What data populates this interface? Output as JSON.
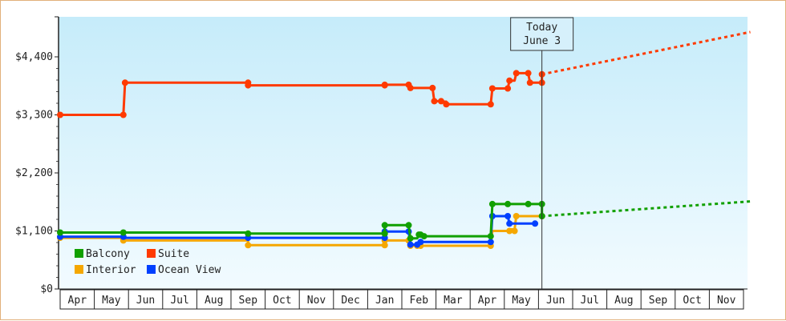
{
  "chart_data": {
    "type": "line",
    "title": "",
    "xlabel": "",
    "ylabel": "",
    "ylim": [
      0,
      4400
    ],
    "y_ticks": [
      {
        "value": 0,
        "label": "$0"
      },
      {
        "value": 1100,
        "label": "$1,100"
      },
      {
        "value": 2200,
        "label": "$2,200"
      },
      {
        "value": 3300,
        "label": "$3,300"
      },
      {
        "value": 4400,
        "label": "$4,400"
      }
    ],
    "x_months": [
      "Apr",
      "May",
      "Jun",
      "Jul",
      "Aug",
      "Sep",
      "Oct",
      "Nov",
      "Dec",
      "Jan",
      "Feb",
      "Mar",
      "Apr",
      "May",
      "Jun",
      "Jul",
      "Aug",
      "Sep",
      "Oct",
      "Nov"
    ],
    "today_label_line1": "Today",
    "today_label_line2": "June 3",
    "today_x": 14.1,
    "grid": false,
    "legend_position": "bottom-left",
    "series": [
      {
        "name": "Suite",
        "color": "#ff3a00",
        "points": [
          [
            0.0,
            3300
          ],
          [
            1.85,
            3300
          ],
          [
            1.9,
            3910
          ],
          [
            5.5,
            3910
          ],
          [
            5.5,
            3860
          ],
          [
            9.5,
            3860
          ],
          [
            9.5,
            3870
          ],
          [
            10.2,
            3870
          ],
          [
            10.25,
            3810
          ],
          [
            10.9,
            3810
          ],
          [
            10.95,
            3560
          ],
          [
            11.15,
            3560
          ],
          [
            11.2,
            3550
          ],
          [
            11.3,
            3550
          ],
          [
            11.35,
            3500
          ],
          [
            12.6,
            3500
          ],
          [
            12.65,
            3800
          ],
          [
            13.1,
            3800
          ],
          [
            13.15,
            3950
          ],
          [
            13.3,
            3950
          ],
          [
            13.35,
            4090
          ],
          [
            13.7,
            4090
          ],
          [
            13.75,
            3910
          ],
          [
            14.1,
            3910
          ],
          [
            14.1,
            4070
          ]
        ],
        "markers": [
          [
            0.0,
            3300
          ],
          [
            1.85,
            3300
          ],
          [
            1.9,
            3910
          ],
          [
            5.5,
            3910
          ],
          [
            5.5,
            3860
          ],
          [
            9.5,
            3860
          ],
          [
            9.5,
            3870
          ],
          [
            10.2,
            3870
          ],
          [
            10.25,
            3810
          ],
          [
            10.9,
            3810
          ],
          [
            10.95,
            3560
          ],
          [
            11.15,
            3560
          ],
          [
            11.3,
            3500
          ],
          [
            12.6,
            3500
          ],
          [
            12.65,
            3800
          ],
          [
            13.1,
            3800
          ],
          [
            13.15,
            3950
          ],
          [
            13.35,
            4090
          ],
          [
            13.7,
            4090
          ],
          [
            13.75,
            3910
          ],
          [
            14.1,
            3910
          ],
          [
            14.1,
            4070
          ]
        ],
        "projection": [
          [
            14.1,
            4070
          ],
          [
            20.2,
            4870
          ]
        ]
      },
      {
        "name": "Balcony",
        "color": "#11a000",
        "points": [
          [
            0.0,
            1070
          ],
          [
            5.5,
            1070
          ],
          [
            5.5,
            1050
          ],
          [
            9.5,
            1050
          ],
          [
            9.5,
            1210
          ],
          [
            10.2,
            1210
          ],
          [
            10.25,
            960
          ],
          [
            10.45,
            960
          ],
          [
            10.5,
            1030
          ],
          [
            10.55,
            1030
          ],
          [
            10.6,
            1000
          ],
          [
            12.6,
            1000
          ],
          [
            12.65,
            1610
          ],
          [
            14.1,
            1610
          ],
          [
            14.1,
            1380
          ]
        ],
        "markers": [
          [
            0.0,
            1070
          ],
          [
            1.85,
            1070
          ],
          [
            5.5,
            1050
          ],
          [
            9.5,
            1050
          ],
          [
            9.5,
            1210
          ],
          [
            10.2,
            1210
          ],
          [
            10.25,
            960
          ],
          [
            10.5,
            1030
          ],
          [
            10.55,
            1030
          ],
          [
            10.65,
            1000
          ],
          [
            12.6,
            1000
          ],
          [
            12.65,
            1610
          ],
          [
            13.1,
            1610
          ],
          [
            13.7,
            1610
          ],
          [
            14.1,
            1610
          ],
          [
            14.1,
            1380
          ]
        ],
        "projection": [
          [
            14.1,
            1380
          ],
          [
            20.2,
            1660
          ]
        ]
      },
      {
        "name": "Ocean View",
        "color": "#0040ff",
        "points": [
          [
            0.0,
            990
          ],
          [
            1.85,
            990
          ],
          [
            1.9,
            970
          ],
          [
            9.5,
            970
          ],
          [
            9.5,
            1090
          ],
          [
            10.2,
            1090
          ],
          [
            10.25,
            840
          ],
          [
            10.45,
            840
          ],
          [
            10.5,
            890
          ],
          [
            12.6,
            890
          ],
          [
            12.65,
            1380
          ],
          [
            13.1,
            1380
          ],
          [
            13.15,
            1240
          ],
          [
            13.9,
            1240
          ]
        ],
        "markers": [
          [
            0.0,
            990
          ],
          [
            1.85,
            990
          ],
          [
            5.5,
            970
          ],
          [
            9.5,
            970
          ],
          [
            9.5,
            1090
          ],
          [
            10.2,
            1090
          ],
          [
            10.25,
            840
          ],
          [
            10.45,
            840
          ],
          [
            10.55,
            890
          ],
          [
            12.6,
            890
          ],
          [
            12.65,
            1380
          ],
          [
            13.1,
            1380
          ],
          [
            13.15,
            1240
          ],
          [
            13.9,
            1240
          ]
        ],
        "projection": []
      },
      {
        "name": "Interior",
        "color": "#f5a700",
        "points": [
          [
            0.0,
            970
          ],
          [
            1.85,
            970
          ],
          [
            1.9,
            920
          ],
          [
            5.5,
            920
          ],
          [
            5.5,
            830
          ],
          [
            9.5,
            830
          ],
          [
            9.5,
            920
          ],
          [
            10.2,
            920
          ],
          [
            10.25,
            820
          ],
          [
            10.45,
            820
          ],
          [
            10.5,
            820
          ],
          [
            12.6,
            820
          ],
          [
            12.65,
            1100
          ],
          [
            13.1,
            1100
          ],
          [
            13.15,
            1130
          ],
          [
            13.3,
            1130
          ],
          [
            13.35,
            1380
          ],
          [
            14.1,
            1380
          ]
        ],
        "markers": [
          [
            0.0,
            970
          ],
          [
            1.85,
            920
          ],
          [
            5.5,
            830
          ],
          [
            9.5,
            830
          ],
          [
            9.5,
            920
          ],
          [
            10.2,
            920
          ],
          [
            10.25,
            820
          ],
          [
            10.45,
            820
          ],
          [
            10.55,
            820
          ],
          [
            12.6,
            820
          ],
          [
            13.15,
            1100
          ],
          [
            13.3,
            1100
          ],
          [
            13.35,
            1380
          ],
          [
            14.1,
            1380
          ]
        ],
        "projection": []
      }
    ],
    "legend": [
      {
        "name": "Balcony",
        "color": "#11a000"
      },
      {
        "name": "Suite",
        "color": "#ff3a00"
      },
      {
        "name": "Interior",
        "color": "#f5a700"
      },
      {
        "name": "Ocean View",
        "color": "#0040ff"
      }
    ]
  }
}
